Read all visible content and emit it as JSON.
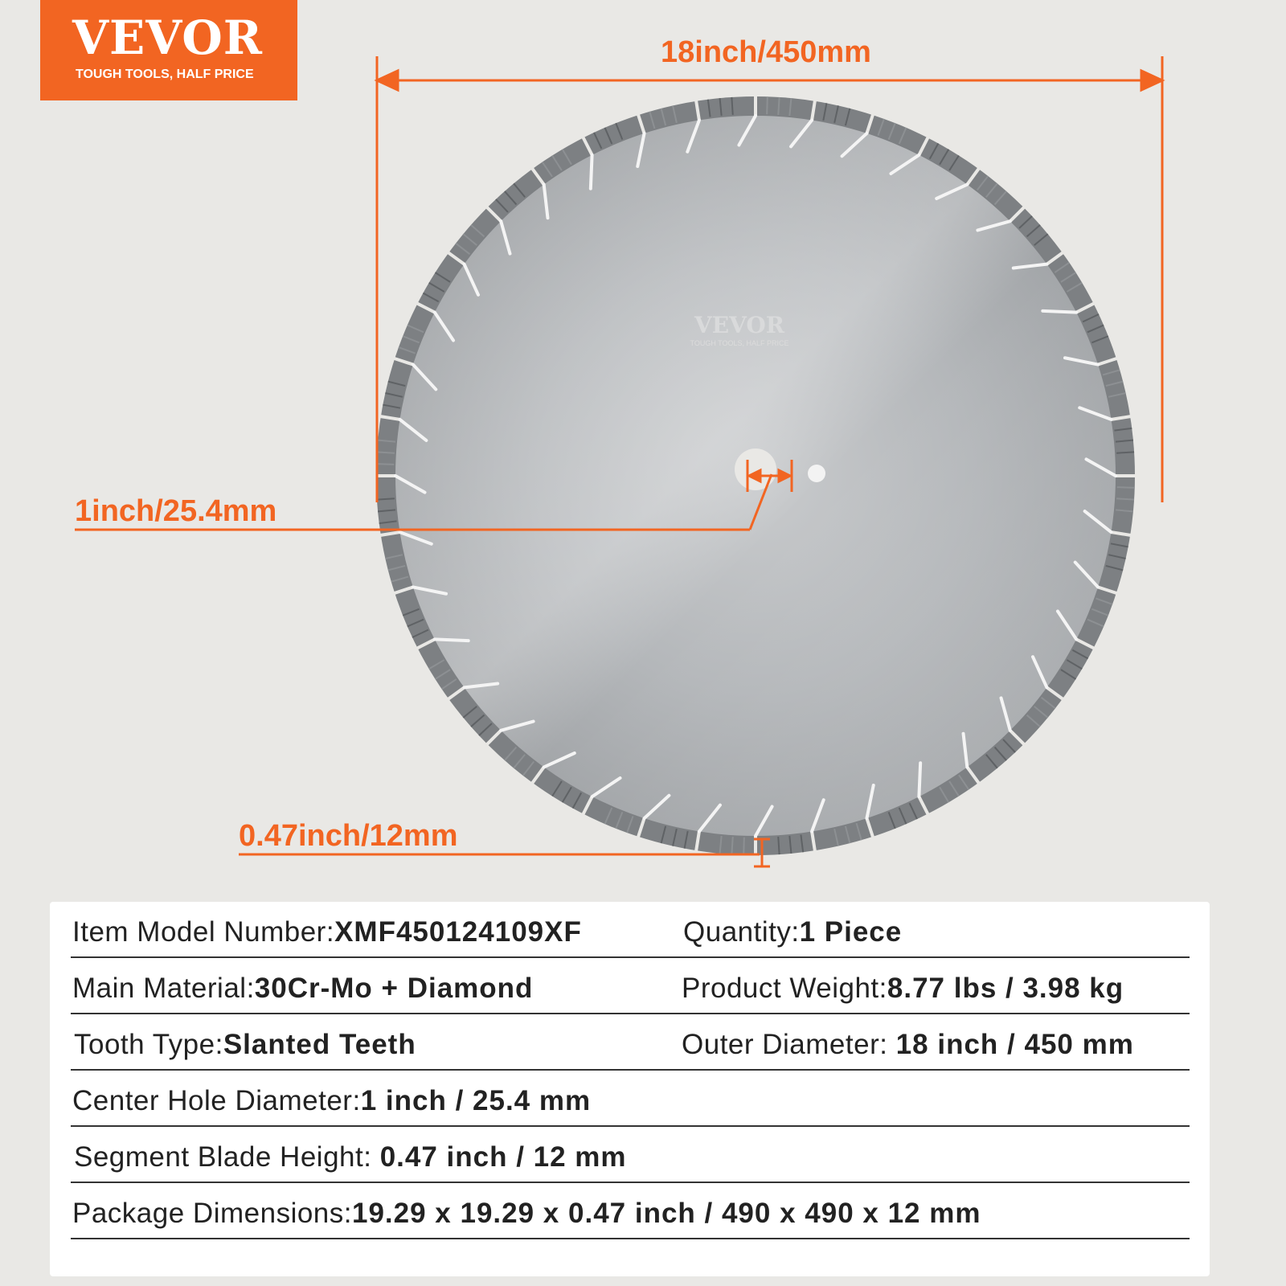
{
  "logo": {
    "brand": "VEVOR",
    "tagline": "TOUGH TOOLS, HALF PRICE",
    "color": "#f26522"
  },
  "blade_logo": {
    "brand": "VEVOR",
    "tagline": "TOUGH TOOLS, HALF PRICE"
  },
  "dimensions": {
    "outer": "18inch/450mm",
    "hole": "1inch/25.4mm",
    "segment": "0.47inch/12mm"
  },
  "accent_color": "#f26522",
  "specs": [
    [
      {
        "label": "Item Model Number:",
        "value": "XMF450124109XF"
      },
      {
        "label": "Quantity:",
        "value": "1 Piece"
      }
    ],
    [
      {
        "label": "Main Material:",
        "value": "30Cr-Mo + Diamond"
      },
      {
        "label": "Product Weight:",
        "value": "8.77 lbs / 3.98 kg"
      }
    ],
    [
      {
        "label": "Tooth Type:",
        "value": "Slanted Teeth"
      },
      {
        "label": "Outer Diameter:",
        "value": "18 inch / 450 mm"
      }
    ],
    [
      {
        "label": "Center Hole Diameter:",
        "value": "1 inch / 25.4 mm"
      }
    ],
    [
      {
        "label": "Segment Blade Height:",
        "value": "0.47 inch / 12 mm"
      }
    ],
    [
      {
        "label": "Package Dimensions:",
        "value": "19.29 x 19.29 x 0.47 inch / 490 x 490 x 12 mm"
      }
    ]
  ]
}
